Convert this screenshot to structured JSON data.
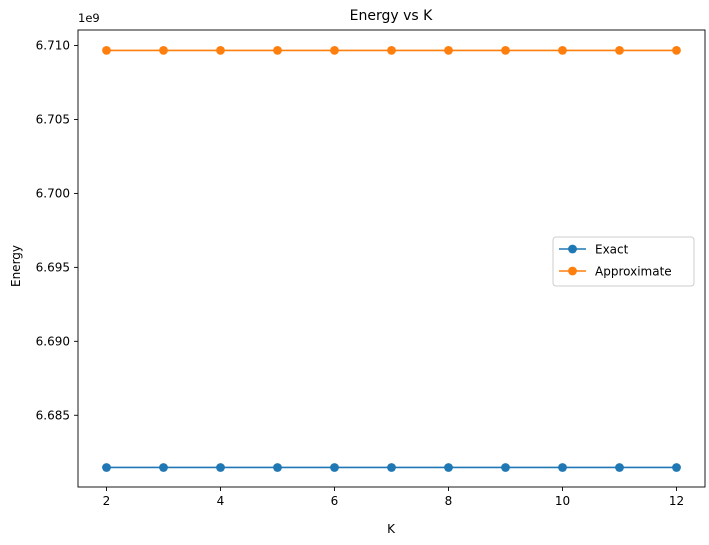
{
  "chart_data": {
    "type": "line",
    "title": "Energy vs K",
    "xlabel": "K",
    "ylabel": "Energy",
    "y_offset_label": "1e9",
    "x": [
      2,
      3,
      4,
      5,
      6,
      7,
      8,
      9,
      10,
      11,
      12
    ],
    "xlim": [
      1.5,
      12.5
    ],
    "ylim": [
      6.68015,
      6.71105
    ],
    "x_ticks": [
      2,
      4,
      6,
      8,
      10,
      12
    ],
    "x_tick_labels": [
      "2",
      "4",
      "6",
      "8",
      "10",
      "12"
    ],
    "y_ticks": [
      6.685,
      6.69,
      6.695,
      6.7,
      6.705,
      6.71
    ],
    "y_tick_labels": [
      "6.685",
      "6.690",
      "6.695",
      "6.700",
      "6.705",
      "6.710"
    ],
    "y_scale_note": "values in units of 1e9",
    "series": [
      {
        "name": "Exact",
        "color": "#1f77b4",
        "marker": "circle",
        "values": [
          6.68147,
          6.68147,
          6.68147,
          6.68147,
          6.68147,
          6.68147,
          6.68147,
          6.68147,
          6.68147,
          6.68147,
          6.68147
        ]
      },
      {
        "name": "Approximate",
        "color": "#ff7f0e",
        "marker": "circle",
        "values": [
          6.70967,
          6.70967,
          6.70967,
          6.70967,
          6.70967,
          6.70967,
          6.70967,
          6.70967,
          6.70967,
          6.70967,
          6.70967
        ]
      }
    ],
    "grid": false,
    "legend_position": "center-right"
  }
}
